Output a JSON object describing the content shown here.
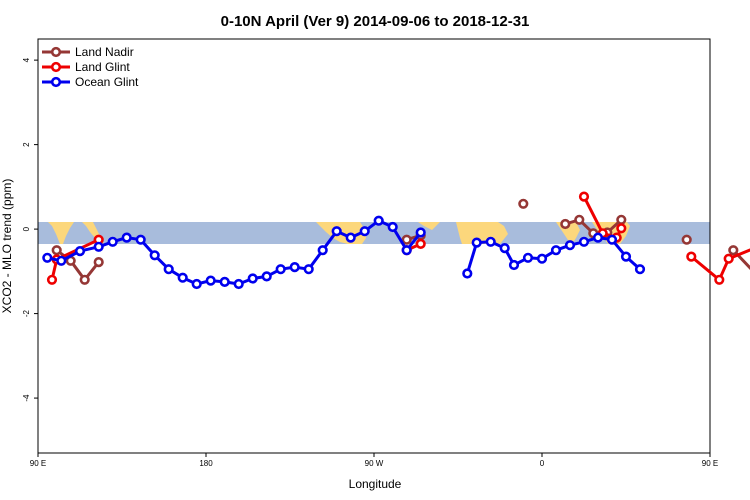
{
  "chart_data": {
    "type": "line",
    "title": "0-10N April (Ver 9)   2014-09-06 to 2018-12-31",
    "xlabel": "Longitude",
    "ylabel": "XCO2 - MLO trend (ppm)",
    "xlim": [
      90,
      450
    ],
    "ylim": [
      -5.3,
      4.5
    ],
    "x_ticks": [
      {
        "value": 90,
        "label": "90 E"
      },
      {
        "value": 180,
        "label": "180"
      },
      {
        "value": 270,
        "label": "90 W"
      },
      {
        "value": 360,
        "label": "0"
      },
      {
        "value": 450,
        "label": "90 E"
      },
      {
        "value": 540,
        "label": "180"
      }
    ],
    "y_ticks": [
      {
        "value": -4,
        "label": "-4"
      },
      {
        "value": -2,
        "label": "-2"
      },
      {
        "value": 0,
        "label": "0"
      },
      {
        "value": 2,
        "label": "2"
      },
      {
        "value": 4,
        "label": "4"
      }
    ],
    "legend_position": "top-left",
    "series": [
      {
        "name": "Land Nadir",
        "color": "#953735",
        "points": [
          [
            100,
            -0.5
          ],
          [
            107.5,
            -0.75
          ],
          [
            115,
            -1.2
          ],
          [
            122.5,
            -0.78
          ],
          [
            287.5,
            -0.25
          ],
          [
            295,
            -0.15
          ],
          [
            350,
            0.6
          ],
          [
            372.5,
            0.12
          ],
          [
            380,
            0.22
          ],
          [
            387.5,
            -0.1
          ],
          [
            395,
            -0.08
          ],
          [
            402.5,
            0.22
          ],
          [
            437.5,
            -0.25
          ],
          [
            462.5,
            -0.5
          ],
          [
            477.5,
            -1.2
          ],
          [
            485,
            -0.78
          ]
        ],
        "segments": [
          [
            0,
            3
          ],
          [
            4,
            5
          ],
          [
            6,
            6
          ],
          [
            7,
            11
          ],
          [
            12,
            12
          ],
          [
            13,
            15
          ]
        ]
      },
      {
        "name": "Land Glint",
        "color": "#ee0000",
        "points": [
          [
            97.5,
            -1.2
          ],
          [
            100,
            -0.72
          ],
          [
            122.5,
            -0.25
          ],
          [
            287.5,
            -0.5
          ],
          [
            295,
            -0.35
          ],
          [
            382.5,
            0.77
          ],
          [
            392.5,
            -0.1
          ],
          [
            400,
            -0.2
          ],
          [
            402.5,
            0.02
          ],
          [
            440,
            -0.65
          ],
          [
            455,
            -1.2
          ],
          [
            460,
            -0.7
          ],
          [
            485,
            -0.25
          ]
        ],
        "segments": [
          [
            0,
            2
          ],
          [
            3,
            4
          ],
          [
            5,
            8
          ],
          [
            9,
            12
          ]
        ]
      },
      {
        "name": "Ocean Glint",
        "color": "#0000ee",
        "points": [
          [
            95,
            -0.68
          ],
          [
            102.5,
            -0.75
          ],
          [
            112.5,
            -0.52
          ],
          [
            122.5,
            -0.42
          ],
          [
            130,
            -0.3
          ],
          [
            137.5,
            -0.2
          ],
          [
            145,
            -0.25
          ],
          [
            152.5,
            -0.62
          ],
          [
            160,
            -0.95
          ],
          [
            167.5,
            -1.15
          ],
          [
            175,
            -1.3
          ],
          [
            182.5,
            -1.22
          ],
          [
            190,
            -1.25
          ],
          [
            197.5,
            -1.3
          ],
          [
            205,
            -1.17
          ],
          [
            212.5,
            -1.12
          ],
          [
            220,
            -0.95
          ],
          [
            227.5,
            -0.9
          ],
          [
            235,
            -0.95
          ],
          [
            242.5,
            -0.5
          ],
          [
            250,
            -0.05
          ],
          [
            257.5,
            -0.2
          ],
          [
            265,
            -0.05
          ],
          [
            272.5,
            0.2
          ],
          [
            280,
            0.05
          ],
          [
            287.5,
            -0.5
          ],
          [
            295,
            -0.08
          ],
          [
            320,
            -1.05
          ],
          [
            325,
            -0.32
          ],
          [
            332.5,
            -0.3
          ],
          [
            340,
            -0.45
          ],
          [
            345,
            -0.85
          ],
          [
            352.5,
            -0.68
          ],
          [
            360,
            -0.7
          ],
          [
            367.5,
            -0.5
          ],
          [
            375,
            -0.38
          ],
          [
            382.5,
            -0.3
          ],
          [
            390,
            -0.2
          ],
          [
            397.5,
            -0.25
          ],
          [
            405,
            -0.65
          ],
          [
            412.5,
            -0.95
          ]
        ],
        "segments": [
          [
            0,
            26
          ],
          [
            27,
            40
          ]
        ]
      }
    ]
  }
}
